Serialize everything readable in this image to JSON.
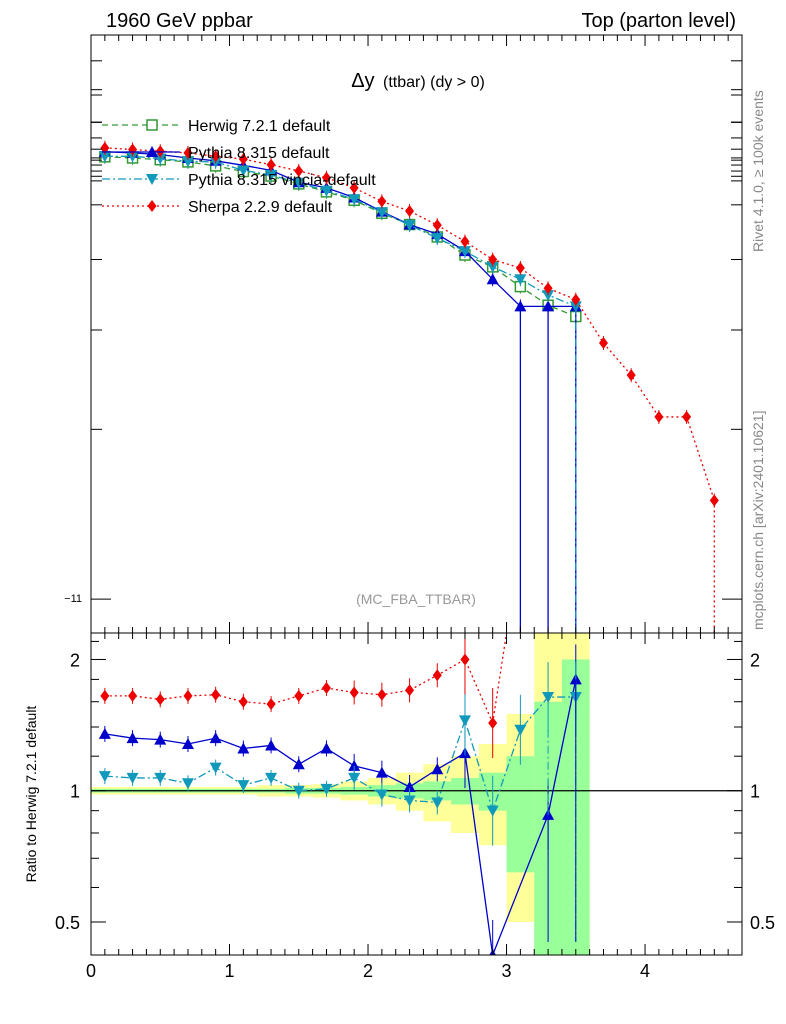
{
  "header": {
    "left": "1960 GeV ppbar",
    "right": "Top (parton level)"
  },
  "side": {
    "rivet": "Rivet 4.1.0, ≥ 100k events",
    "mcplots": "mcplots.cern.ch [arXiv:2401.10621]"
  },
  "chart_data": [
    {
      "panel": "main",
      "type": "line",
      "title_main": "Δy",
      "title_sub": "(ttbar) (dy > 0)",
      "analysis_tag": "(MC_FBA_TTBAR)",
      "yscale": "log",
      "ytick_label": "−11",
      "xlim": [
        0,
        4.7
      ],
      "ylim_log10": [
        -11.06,
        -10.0
      ],
      "legend_position": "top-left",
      "series": [
        {
          "name": "Herwig 7.2.1 default",
          "color": "#339933",
          "marker": "open-square",
          "linestyle": "dashed",
          "x": [
            0.1,
            0.3,
            0.5,
            0.7,
            0.9,
            1.1,
            1.3,
            1.5,
            1.7,
            1.9,
            2.1,
            2.3,
            2.5,
            2.7,
            2.9,
            3.1,
            3.3,
            3.5
          ],
          "log10y": [
            -10.216,
            -10.218,
            -10.221,
            -10.225,
            -10.232,
            -10.242,
            -10.25,
            -10.264,
            -10.278,
            -10.293,
            -10.316,
            -10.336,
            -10.358,
            -10.39,
            -10.411,
            -10.446,
            -10.479,
            -10.499
          ]
        },
        {
          "name": "Pythia 8.315 default",
          "color": "#0000cc",
          "marker": "filled-triangle-up",
          "linestyle": "solid",
          "x": [
            0.1,
            0.3,
            0.5,
            0.7,
            0.9,
            1.1,
            1.3,
            1.5,
            1.7,
            1.9,
            2.1,
            2.3,
            2.5,
            2.7,
            2.9,
            3.1,
            3.3,
            3.5
          ],
          "log10y": [
            -10.207,
            -10.209,
            -10.212,
            -10.218,
            -10.223,
            -10.231,
            -10.24,
            -10.261,
            -10.271,
            -10.288,
            -10.313,
            -10.336,
            -10.353,
            -10.383,
            -10.433,
            -10.481,
            -10.481,
            -10.481
          ]
        },
        {
          "name": "Pythia 8.315 vincia-default",
          "color": "#1199bb",
          "marker": "filled-triangle-down",
          "linestyle": "dash-dot",
          "x": [
            0.1,
            0.3,
            0.5,
            0.7,
            0.9,
            1.1,
            1.3,
            1.5,
            1.7,
            1.9,
            2.1,
            2.3,
            2.5,
            2.7,
            2.9,
            3.1,
            3.3,
            3.5
          ],
          "log10y": [
            -10.215,
            -10.215,
            -10.219,
            -10.224,
            -10.225,
            -10.24,
            -10.248,
            -10.262,
            -10.276,
            -10.291,
            -10.314,
            -10.337,
            -10.36,
            -10.383,
            -10.411,
            -10.433,
            -10.461,
            -10.481
          ]
        },
        {
          "name": "Sherpa 2.2.9 default",
          "color": "#ee0000",
          "marker": "filled-diamond",
          "linestyle": "dotted",
          "x": [
            0.1,
            0.3,
            0.5,
            0.7,
            0.9,
            1.1,
            1.3,
            1.5,
            1.7,
            1.9,
            2.1,
            2.3,
            2.5,
            2.7,
            2.9,
            3.1,
            3.3,
            3.5,
            3.7,
            3.9,
            4.1,
            4.3,
            4.5
          ],
          "log10y": [
            -10.2,
            -10.203,
            -10.206,
            -10.209,
            -10.215,
            -10.22,
            -10.23,
            -10.241,
            -10.253,
            -10.271,
            -10.295,
            -10.312,
            -10.337,
            -10.366,
            -10.398,
            -10.413,
            -10.449,
            -10.469,
            -10.546,
            -10.603,
            -10.677,
            -10.677,
            -10.825
          ]
        }
      ]
    },
    {
      "panel": "ratio",
      "type": "line",
      "ylabel": "Ratio to Herwig 7.2.1 default",
      "yscale": "log",
      "xlim": [
        0,
        4.7
      ],
      "ylim": [
        0.42,
        2.3
      ],
      "yticks": [
        {
          "v": 0.5,
          "label": "0.5"
        },
        {
          "v": 1,
          "label": "1"
        },
        {
          "v": 2,
          "label": "2"
        }
      ],
      "xticks": [
        {
          "v": 0,
          "label": "0"
        },
        {
          "v": 1,
          "label": "1"
        },
        {
          "v": 2,
          "label": "2"
        },
        {
          "v": 3,
          "label": "3"
        },
        {
          "v": 4,
          "label": "4"
        }
      ],
      "uncertainty_bands": {
        "bin_width": 0.2,
        "x": [
          0.1,
          0.3,
          0.5,
          0.7,
          0.9,
          1.1,
          1.3,
          1.5,
          1.7,
          1.9,
          2.1,
          2.3,
          2.5,
          2.7,
          2.9,
          3.1,
          3.3,
          3.5
        ],
        "stat_green": [
          [
            0.99,
            1.01
          ],
          [
            0.99,
            1.01
          ],
          [
            0.99,
            1.01
          ],
          [
            0.99,
            1.01
          ],
          [
            0.99,
            1.01
          ],
          [
            0.99,
            1.01
          ],
          [
            0.99,
            1.01
          ],
          [
            0.985,
            1.015
          ],
          [
            0.985,
            1.015
          ],
          [
            0.98,
            1.02
          ],
          [
            0.97,
            1.03
          ],
          [
            0.96,
            1.04
          ],
          [
            0.95,
            1.05
          ],
          [
            0.93,
            1.07
          ],
          [
            0.9,
            1.1
          ],
          [
            0.65,
            1.2
          ],
          [
            0.35,
            1.6
          ],
          [
            0.35,
            2.0
          ]
        ],
        "total_yellow": [
          [
            0.98,
            1.02
          ],
          [
            0.98,
            1.02
          ],
          [
            0.98,
            1.02
          ],
          [
            0.98,
            1.02
          ],
          [
            0.98,
            1.02
          ],
          [
            0.98,
            1.02
          ],
          [
            0.97,
            1.03
          ],
          [
            0.97,
            1.03
          ],
          [
            0.965,
            1.035
          ],
          [
            0.95,
            1.05
          ],
          [
            0.93,
            1.07
          ],
          [
            0.9,
            1.1
          ],
          [
            0.85,
            1.15
          ],
          [
            0.8,
            1.2
          ],
          [
            0.75,
            1.28
          ],
          [
            0.5,
            1.5
          ],
          [
            0.35,
            2.3
          ],
          [
            0.35,
            2.3
          ]
        ]
      },
      "series": [
        {
          "name": "Pythia 8.315 default",
          "color": "#0000cc",
          "marker": "filled-triangle-up",
          "linestyle": "solid",
          "x": [
            0.1,
            0.3,
            0.5,
            0.7,
            0.9,
            1.1,
            1.3,
            1.5,
            1.7,
            1.9,
            2.1,
            2.3,
            2.5,
            2.7,
            2.9,
            3.3,
            3.5
          ],
          "y": [
            1.35,
            1.32,
            1.31,
            1.28,
            1.32,
            1.25,
            1.27,
            1.15,
            1.25,
            1.14,
            1.1,
            1.02,
            1.12,
            1.22,
            0.42,
            0.88,
            1.8
          ]
        },
        {
          "name": "Pythia 8.315 vincia-default",
          "color": "#1199bb",
          "marker": "filled-triangle-down",
          "linestyle": "dash-dot",
          "x": [
            0.1,
            0.3,
            0.5,
            0.7,
            0.9,
            1.1,
            1.3,
            1.5,
            1.7,
            1.9,
            2.1,
            2.3,
            2.5,
            2.7,
            2.9,
            3.1,
            3.3,
            3.5
          ],
          "y": [
            1.08,
            1.07,
            1.07,
            1.04,
            1.13,
            1.03,
            1.07,
            1.0,
            1.01,
            1.07,
            0.98,
            0.95,
            0.94,
            1.45,
            0.9,
            1.38,
            1.64,
            1.64
          ]
        },
        {
          "name": "Sherpa 2.2.9 default",
          "color": "#ee0000",
          "marker": "filled-diamond",
          "linestyle": "dotted",
          "x": [
            0.1,
            0.3,
            0.5,
            0.7,
            0.9,
            1.1,
            1.3,
            1.5,
            1.7,
            1.9,
            2.1,
            2.3,
            2.5,
            2.7,
            2.9
          ],
          "y": [
            1.65,
            1.65,
            1.62,
            1.65,
            1.66,
            1.6,
            1.58,
            1.65,
            1.72,
            1.68,
            1.66,
            1.7,
            1.84,
            2.0,
            1.43
          ]
        }
      ]
    }
  ]
}
